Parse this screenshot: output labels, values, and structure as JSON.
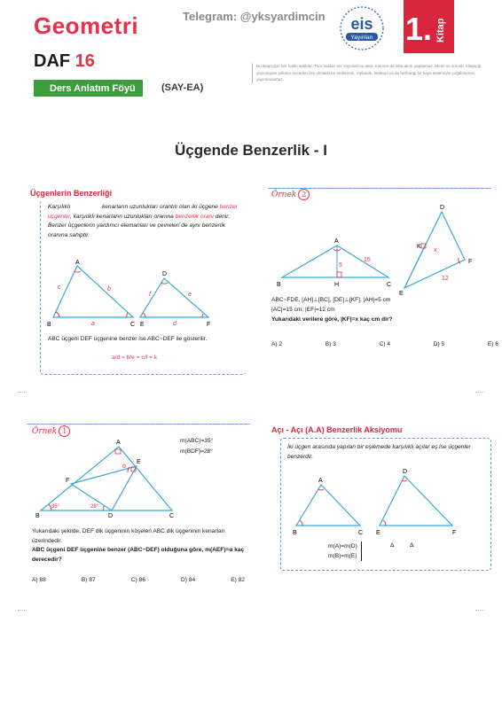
{
  "header": {
    "subject": "Geometri",
    "daf": "DAF",
    "daf_num": "16",
    "ders_label": "Ders Anlatım Föyü",
    "say_label": "(SAY-EA)",
    "telegram": "Telegram: @yksyardimcin",
    "logo_text": "eis",
    "logo_sub": "Yayınları",
    "kitap_num": "1.",
    "kitap_label": "Kitap",
    "copyright": "Bu kitapçığın her hakkı saklıdır. Tüm hakları eis Yayınları'na aittir. Kısmen de olsa alıntı yapılamaz. Metin ve sorular, kitapçığı yayımlayan şirketin önceden izni olmaksızın elektronik, mekanik, fotokopi ya da herhangi bir kayıt sistemiyle çoğaltılamaz, yayımlanamaz."
  },
  "main_title": "Üçgende Benzerlik - I",
  "section1": {
    "title": "Üçgenlerin Benzerliği",
    "p_a": "Karşılıklı",
    "p_b": "kenarların uzunlukları orantılı olan iki üçgene",
    "p_c": "benzer üçgenler",
    "p_d": ", karşılıklı kenarların uzunlukları oranına",
    "p_e": "benzerlik oranı",
    "p_f": "denir. Benzer üçgenlerin yardımcı elemanları ve çevreleri de aynı benzerlik oranına sahiptir.",
    "labels": [
      "A",
      "B",
      "C",
      "D",
      "E",
      "F",
      "a",
      "b",
      "c",
      "d",
      "e",
      "f"
    ],
    "bottom_a": "ABC üçgeni DEF üçgenine benzer ise",
    "bottom_rel": "ABC~DEF",
    "bottom_b": "ile gösterilir.",
    "ratio": "a/d = b/e = c/f = k"
  },
  "ornek2": {
    "label": "Örnek",
    "num": "2",
    "labels": [
      "A",
      "B",
      "H",
      "C",
      "5",
      "15",
      "D",
      "K",
      "x",
      "F",
      "12",
      "E"
    ],
    "given1": "ABC~FDE, [AH]⊥[BC], [DE]⊥[KF], |AH|=5 cm",
    "given2": "|AC|=15 cm, |EF|=12 cm",
    "question": "Yukarıdaki verilere göre, |KF|=x kaç cm dir?",
    "choices": [
      "A) 2",
      "B) 3",
      "C) 4",
      "D) 5",
      "E) 6"
    ]
  },
  "ornek1": {
    "label": "Örnek",
    "num": "1",
    "m1": "m(ABC)=35°",
    "m2": "m(BDF)=28°",
    "labels": [
      "A",
      "B",
      "C",
      "D",
      "E",
      "F",
      "α",
      "35°",
      "28°"
    ],
    "text1": "Yukarıdaki şekilde, DEF dik üçgeninin köşeleri ABC dik üçgeninin kenarları üzerindedir.",
    "question": "ABC üçgeni DEF üçgenine benzer (ABC~DEF) olduğuna göre, m(AEF)=α kaç derecedir?",
    "choices": [
      "A) 88",
      "B) 87",
      "C) 86",
      "D) 84",
      "E) 82"
    ]
  },
  "section2": {
    "title": "Açı - Açı (A.A) Benzerlik Aksiyomu",
    "text": "İki üçgen arasında yapılan bir eşlemede karşılıklı açılar eş ise üçgenler benzerdir.",
    "labels": [
      "A",
      "B",
      "C",
      "D",
      "E",
      "F"
    ],
    "eq1": "m(A)=m(D)",
    "eq2": "m(B)=m(E)",
    "rel": "Δ          Δ"
  },
  "colors": {
    "accent_red": "#e8304a",
    "triangle_blue": "#3aaad8",
    "green": "#3d9c3c"
  }
}
